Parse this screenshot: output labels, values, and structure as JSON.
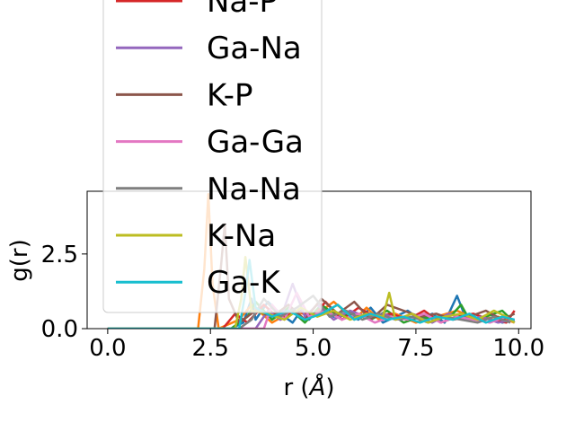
{
  "chart_data": {
    "type": "line",
    "xlabel": "r (",
    "xlabel_unit": "Å",
    "xlabel_close": ")",
    "ylabel": "g(r)",
    "xlim": [
      -0.5,
      10.3
    ],
    "ylim": [
      0,
      4.6
    ],
    "xticks": [
      0.0,
      2.5,
      5.0,
      7.5,
      10.0
    ],
    "xtick_labels": [
      "0.0",
      "2.5",
      "5.0",
      "7.5",
      "10.0"
    ],
    "yticks": [
      0.0,
      2.5
    ],
    "ytick_labels": [
      "0.0",
      "2.5"
    ],
    "grid": false,
    "legend_position": "upper-center",
    "legend": [
      {
        "name": "Na-P",
        "color": "#d62728"
      },
      {
        "name": "Ga-Na",
        "color": "#9467bd"
      },
      {
        "name": "K-P",
        "color": "#8c564b"
      },
      {
        "name": "Ga-Ga",
        "color": "#e377c2"
      },
      {
        "name": "Na-Na",
        "color": "#7f7f7f"
      },
      {
        "name": "K-Na",
        "color": "#bcbd22"
      },
      {
        "name": "Ga-K",
        "color": "#17becf"
      }
    ],
    "series": [
      {
        "color": "#1f77b4",
        "x": [
          0,
          2.5,
          3.0,
          3.3,
          3.5,
          3.6,
          3.9,
          4.2,
          4.5,
          4.7,
          4.9,
          5.2,
          5.5,
          5.8,
          6.1,
          6.4,
          6.7,
          7.0,
          7.3,
          7.6,
          7.9,
          8.2,
          8.5,
          8.7,
          9.0,
          9.3,
          9.6,
          9.9
        ],
        "y": [
          0,
          0,
          0,
          0.2,
          1.0,
          0.3,
          0.9,
          0.5,
          0.2,
          0.6,
          0.3,
          0.8,
          0.4,
          0.5,
          0.3,
          0.7,
          0.2,
          0.4,
          0.6,
          0.3,
          0.5,
          0.2,
          1.1,
          0.4,
          0.3,
          0.5,
          0.2,
          0.3
        ]
      },
      {
        "color": "#ff7f0e",
        "x": [
          0,
          2.2,
          2.35,
          2.45,
          2.55,
          2.7,
          3.2,
          3.5,
          4.0,
          4.5,
          5.0,
          5.5,
          6.0,
          6.3,
          6.6,
          7.0,
          7.5,
          8.0,
          8.5,
          9.0,
          9.5,
          9.9
        ],
        "y": [
          0,
          0,
          2.0,
          4.5,
          1.5,
          0,
          0.3,
          0.8,
          0.2,
          0.6,
          0.4,
          0.9,
          0.3,
          0.7,
          0.3,
          0.5,
          0.2,
          0.4,
          0.6,
          0.3,
          0.4,
          0.2
        ]
      },
      {
        "color": "#2ca02c",
        "x": [
          0,
          3.0,
          3.4,
          3.6,
          4.0,
          4.4,
          4.8,
          5.2,
          5.6,
          6.0,
          6.4,
          6.8,
          7.2,
          7.6,
          8.0,
          8.4,
          8.6,
          8.8,
          9.2,
          9.6,
          9.9
        ],
        "y": [
          0,
          0,
          0.4,
          0.9,
          0.3,
          0.7,
          0.2,
          0.8,
          0.4,
          0.5,
          0.3,
          0.6,
          0.2,
          0.4,
          0.3,
          0.5,
          0.8,
          0.3,
          0.4,
          0.6,
          0.2
        ]
      },
      {
        "color": "#d62728",
        "x": [
          0,
          2.8,
          3.1,
          3.4,
          3.8,
          4.2,
          4.6,
          5.0,
          5.3,
          5.7,
          6.1,
          6.5,
          6.9,
          7.3,
          7.7,
          8.1,
          8.5,
          8.9,
          9.3,
          9.7,
          9.9
        ],
        "y": [
          0,
          0,
          0.5,
          0.2,
          0.8,
          0.3,
          0.6,
          0.4,
          0.9,
          0.3,
          0.7,
          0.4,
          0.5,
          0.3,
          0.6,
          0.2,
          0.4,
          0.5,
          0.3,
          0.2,
          0.6
        ]
      },
      {
        "color": "#9467bd",
        "x": [
          0,
          3.6,
          3.9,
          4.2,
          4.5,
          4.8,
          5.1,
          5.5,
          5.9,
          6.3,
          6.7,
          7.1,
          7.5,
          7.9,
          8.3,
          8.7,
          9.1,
          9.5,
          9.9
        ],
        "y": [
          0,
          0,
          0.6,
          0.3,
          1.5,
          0.4,
          0.8,
          0.3,
          0.6,
          0.4,
          0.5,
          0.3,
          0.4,
          0.2,
          0.5,
          0.3,
          0.4,
          0.2,
          0.3
        ]
      },
      {
        "color": "#8c564b",
        "x": [
          0,
          2.6,
          2.75,
          2.85,
          2.95,
          3.2,
          3.6,
          4.0,
          4.4,
          4.8,
          5.2,
          5.6,
          6.0,
          6.4,
          6.8,
          7.2,
          7.6,
          8.0,
          8.4,
          8.8,
          9.2,
          9.6,
          9.9
        ],
        "y": [
          0,
          0,
          2.0,
          3.5,
          1.0,
          0.2,
          0.6,
          0.4,
          0.8,
          0.3,
          1.0,
          0.5,
          0.9,
          0.3,
          0.8,
          0.6,
          0.4,
          0.5,
          0.3,
          0.4,
          0.6,
          0.3,
          0.5
        ]
      },
      {
        "color": "#e377c2",
        "x": [
          0,
          3.8,
          4.0,
          4.3,
          4.6,
          4.9,
          5.3,
          5.7,
          6.1,
          6.5,
          6.9,
          7.3,
          7.7,
          8.1,
          8.5,
          8.9,
          9.3,
          9.7,
          9.9
        ],
        "y": [
          0,
          0,
          0.8,
          0.3,
          1.2,
          0.4,
          0.6,
          0.3,
          0.5,
          0.2,
          0.4,
          0.3,
          0.5,
          0.2,
          0.4,
          0.3,
          0.2,
          0.4,
          0.2
        ]
      },
      {
        "color": "#7f7f7f",
        "x": [
          0,
          3.2,
          3.5,
          3.8,
          4.2,
          4.6,
          5.0,
          5.4,
          5.8,
          6.2,
          6.6,
          7.0,
          7.4,
          7.8,
          8.2,
          8.6,
          9.0,
          9.4,
          9.8
        ],
        "y": [
          0,
          0,
          0.3,
          1.0,
          0.4,
          0.7,
          1.1,
          0.4,
          0.6,
          0.3,
          0.5,
          0.3,
          0.4,
          0.2,
          0.4,
          0.3,
          0.2,
          0.4,
          0.2
        ]
      },
      {
        "color": "#bcbd22",
        "x": [
          0,
          3.1,
          3.25,
          3.35,
          3.5,
          3.9,
          4.3,
          4.7,
          5.1,
          5.5,
          5.9,
          6.3,
          6.7,
          6.85,
          7.0,
          7.4,
          7.8,
          8.2,
          8.6,
          9.0,
          9.4,
          9.7,
          9.9
        ],
        "y": [
          0,
          0,
          1.0,
          2.4,
          0.6,
          0.5,
          0.3,
          0.7,
          0.4,
          0.6,
          0.3,
          0.5,
          0.4,
          1.2,
          0.3,
          0.5,
          0.2,
          0.4,
          0.5,
          0.3,
          0.6,
          0.4,
          0.2
        ]
      },
      {
        "color": "#17becf",
        "x": [
          0,
          3.2,
          3.35,
          3.45,
          3.6,
          4.0,
          4.4,
          4.8,
          5.2,
          5.6,
          6.0,
          6.4,
          6.8,
          7.2,
          7.6,
          8.0,
          8.4,
          8.8,
          9.2,
          9.6,
          9.9
        ],
        "y": [
          0,
          0,
          1.2,
          2.3,
          0.7,
          0.4,
          0.6,
          0.3,
          0.5,
          0.8,
          0.3,
          0.5,
          0.3,
          0.4,
          0.2,
          0.4,
          0.3,
          0.5,
          0.2,
          0.4,
          0.3
        ]
      }
    ]
  }
}
